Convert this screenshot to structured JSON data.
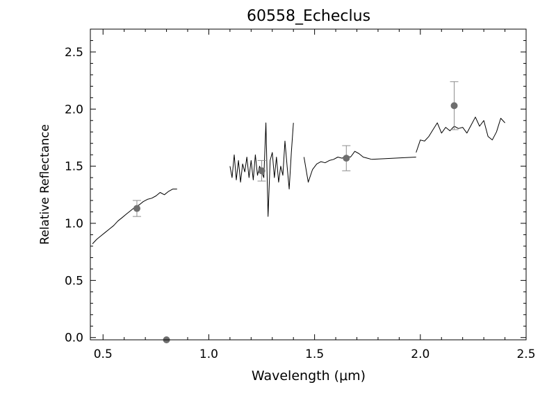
{
  "chart_data": {
    "type": "line",
    "title": "60558_Echeclus",
    "xlabel": "Wavelength (μm)",
    "ylabel": "Relative Reflectance",
    "xlim": [
      0.44,
      2.5
    ],
    "ylim": [
      -0.02,
      2.7
    ],
    "x_ticks": [
      0.5,
      1.0,
      1.5,
      2.0,
      2.5
    ],
    "x_tick_labels": [
      "0.5",
      "1.0",
      "1.5",
      "2.0",
      "2.5"
    ],
    "y_ticks": [
      0.0,
      0.5,
      1.0,
      1.5,
      2.0,
      2.5
    ],
    "y_tick_labels": [
      "0.0",
      "0.5",
      "1.0",
      "1.5",
      "2.0",
      "2.5"
    ],
    "grid": false,
    "colors": {
      "spectrum": "#000000",
      "photometry": "#6e6e6e",
      "errorbar": "#8c8c8c"
    },
    "series": [
      {
        "type": "line",
        "segment": "visible",
        "x": [
          0.45,
          0.47,
          0.49,
          0.51,
          0.53,
          0.55,
          0.57,
          0.59,
          0.61,
          0.63,
          0.65,
          0.67,
          0.69,
          0.71,
          0.73,
          0.75,
          0.77,
          0.79,
          0.81,
          0.83,
          0.85
        ],
        "y": [
          0.82,
          0.86,
          0.89,
          0.92,
          0.95,
          0.98,
          1.02,
          1.05,
          1.08,
          1.11,
          1.14,
          1.16,
          1.19,
          1.21,
          1.22,
          1.24,
          1.27,
          1.25,
          1.28,
          1.3,
          1.3
        ]
      },
      {
        "type": "line",
        "segment": "J band",
        "x": [
          1.1,
          1.11,
          1.12,
          1.13,
          1.14,
          1.15,
          1.16,
          1.17,
          1.18,
          1.19,
          1.2,
          1.21,
          1.22,
          1.23,
          1.24,
          1.25,
          1.26,
          1.27,
          1.28,
          1.29,
          1.3,
          1.31,
          1.32,
          1.33,
          1.34,
          1.35,
          1.36,
          1.37,
          1.38,
          1.39,
          1.4
        ],
        "y": [
          1.5,
          1.4,
          1.6,
          1.38,
          1.55,
          1.36,
          1.52,
          1.45,
          1.58,
          1.4,
          1.55,
          1.38,
          1.6,
          1.42,
          1.5,
          1.45,
          1.4,
          1.88,
          1.06,
          1.55,
          1.62,
          1.4,
          1.58,
          1.36,
          1.5,
          1.42,
          1.72,
          1.5,
          1.3,
          1.62,
          1.88
        ]
      },
      {
        "type": "line",
        "segment": "H band",
        "x": [
          1.45,
          1.47,
          1.49,
          1.51,
          1.53,
          1.55,
          1.57,
          1.59,
          1.61,
          1.63,
          1.65,
          1.67,
          1.69,
          1.71,
          1.73,
          1.75,
          1.77
        ],
        "y": [
          1.58,
          1.36,
          1.47,
          1.52,
          1.54,
          1.53,
          1.55,
          1.56,
          1.58,
          1.57,
          1.59,
          1.58,
          1.63,
          1.61,
          1.58,
          1.57,
          1.56
        ]
      },
      {
        "type": "line",
        "segment": "gap",
        "x": [
          1.77,
          1.98
        ],
        "y": [
          1.56,
          1.58
        ]
      },
      {
        "type": "line",
        "segment": "K band",
        "x": [
          1.98,
          2.0,
          2.02,
          2.04,
          2.06,
          2.08,
          2.1,
          2.12,
          2.14,
          2.16,
          2.18,
          2.2,
          2.22,
          2.24,
          2.26,
          2.28,
          2.3,
          2.32,
          2.34,
          2.36,
          2.38,
          2.4
        ],
        "y": [
          1.62,
          1.73,
          1.72,
          1.76,
          1.82,
          1.88,
          1.79,
          1.84,
          1.81,
          1.85,
          1.83,
          1.84,
          1.79,
          1.86,
          1.93,
          1.85,
          1.9,
          1.76,
          1.73,
          1.8,
          1.92,
          1.88
        ]
      }
    ],
    "points": [
      {
        "x": 0.66,
        "y": 1.13,
        "err": 0.07
      },
      {
        "x": 0.8,
        "y": -0.02,
        "err": null
      },
      {
        "x": 1.25,
        "y": 1.46,
        "err": 0.09
      },
      {
        "x": 1.65,
        "y": 1.57,
        "err": 0.11
      },
      {
        "x": 2.16,
        "y": 2.03,
        "err": 0.21
      }
    ]
  }
}
